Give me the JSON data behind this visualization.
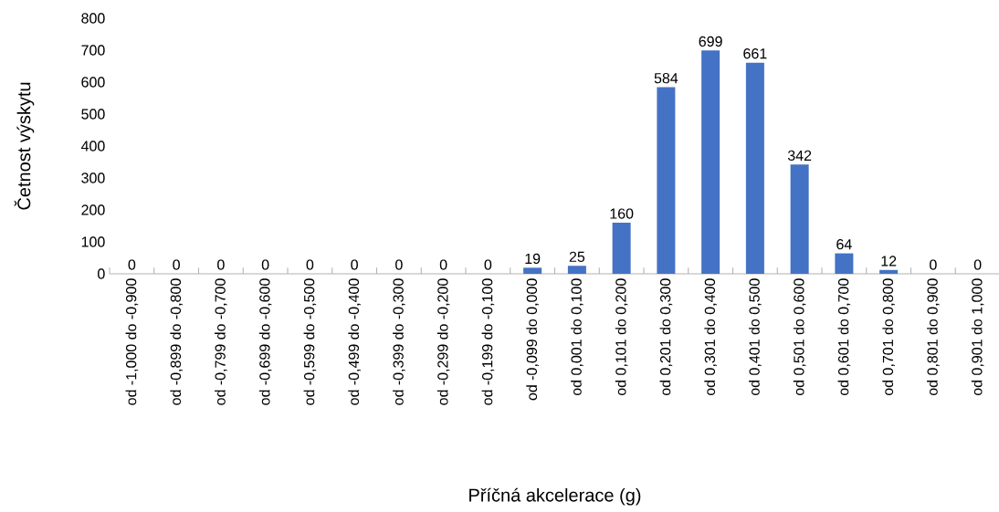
{
  "chart_data": {
    "type": "bar",
    "xlabel": "Příčná akcelerace (g)",
    "ylabel": "Četnost výskytu",
    "categories": [
      "od -1,000 do -0,900",
      "od -0,899 do -0,800",
      "od -0,799 do -0,700",
      "od -0,699 do -0,600",
      "od -0,599 do -0,500",
      "od -0,499 do -0,400",
      "od -0,399  do -0,300",
      "od -0,299  do -0,200",
      "od -0,199 do -0,100",
      "od -0,099 do 0,000",
      "od 0,001 do 0,100",
      "od 0,101 do 0,200",
      "od 0,201 do 0,300",
      "od 0,301 do 0,400",
      "od 0,401 do 0,500",
      "od 0,501 do 0,600",
      "od 0,601 do 0,700",
      "od 0,701 do 0,800",
      "od 0,801 do 0,900",
      "od 0,901 do 1,000"
    ],
    "values": [
      0,
      0,
      0,
      0,
      0,
      0,
      0,
      0,
      0,
      19,
      25,
      160,
      584,
      699,
      661,
      342,
      64,
      12,
      0,
      0
    ],
    "color": "#4472c4",
    "ylim": [
      0,
      800
    ],
    "yticks": [
      0,
      100,
      200,
      300,
      400,
      500,
      600,
      700,
      800
    ],
    "data_labels": true,
    "grid": false
  }
}
